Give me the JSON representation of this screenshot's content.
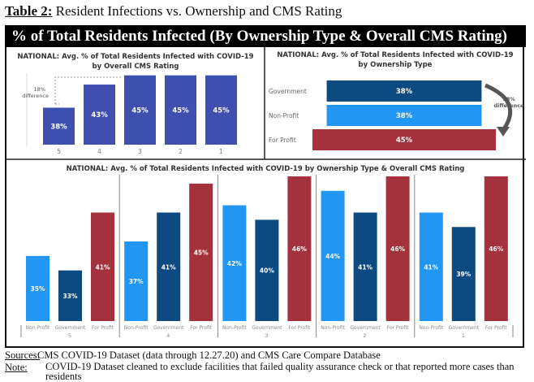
{
  "header": {
    "label": "Table 2:",
    "title": "Resident Infections vs. Ownership and CMS Rating"
  },
  "banner": "% of Total Residents Infected (By Ownership Type & Overall CMS Rating)",
  "colors": {
    "rating_bar": "#3f4fb0",
    "government": "#0d4a82",
    "non_profit": "#2196f3",
    "for_profit": "#a4313c"
  },
  "chart_data": [
    {
      "type": "bar",
      "title": "NATIONAL: Avg. % of Total Residents Infected with COVID-19 by Overall CMS Rating",
      "categories": [
        "5",
        "4",
        "3",
        "2",
        "1"
      ],
      "values": [
        38,
        43,
        45,
        45,
        45
      ],
      "data_labels": [
        "38%",
        "43%",
        "45%",
        "45%",
        "45%"
      ],
      "annotation": "18% difference",
      "ylim": [
        30,
        46
      ]
    },
    {
      "type": "bar",
      "orientation": "horizontal",
      "title": "NATIONAL: Avg. % of Total Residents Infected with COVID-19 by Ownership Type",
      "categories": [
        "Government",
        "Non-Profit",
        "For Profit"
      ],
      "values": [
        38,
        38,
        45
      ],
      "data_labels": [
        "38%",
        "38%",
        "45%"
      ],
      "annotation": "18% difference"
    },
    {
      "type": "bar",
      "title": "NATIONAL: Avg. % of Total Residents Infected with COVID-19 by Ownership Type & Overall CMS Rating",
      "groups": [
        "5",
        "4",
        "3",
        "2",
        "1"
      ],
      "categories": [
        "Non-Profit",
        "Government",
        "For Profit"
      ],
      "values": [
        [
          35,
          33,
          41
        ],
        [
          37,
          41,
          45
        ],
        [
          42,
          40,
          46
        ],
        [
          44,
          41,
          46
        ],
        [
          41,
          39,
          46
        ]
      ],
      "ylim": [
        26,
        46
      ]
    }
  ],
  "footer": {
    "sources_label": "Sources:",
    "sources": "CMS COVID-19 Dataset (data through 12.27.20) and CMS Care Compare Database",
    "note_label": "Note:",
    "note": "COVID-19 Dataset cleaned to exclude facilities that failed quality assurance check or that reported more cases than residents"
  }
}
